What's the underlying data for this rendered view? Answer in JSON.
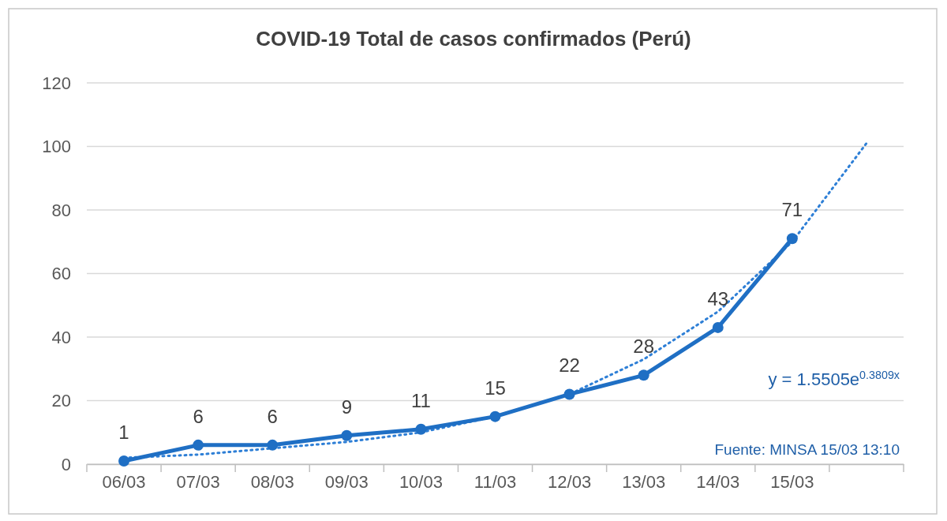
{
  "chart_data": {
    "type": "line",
    "title": "COVID-19  Total de casos confirmados (Perú)",
    "categories": [
      "06/03",
      "07/03",
      "08/03",
      "09/03",
      "10/03",
      "11/03",
      "12/03",
      "13/03",
      "14/03",
      "15/03",
      null
    ],
    "series": [
      {
        "color": "#1f6fc4",
        "values": [
          1,
          6,
          6,
          9,
          11,
          15,
          22,
          28,
          43,
          71,
          null
        ],
        "marker": "circle",
        "line_style": "solid",
        "data_labels": true
      },
      {
        "color": "#2e7fd6",
        "values": [
          2,
          3,
          5,
          7,
          10,
          15,
          22,
          33,
          48,
          70,
          101
        ],
        "marker": "none",
        "line_style": "dotted"
      }
    ],
    "ylim": [
      0,
      120
    ],
    "yticks": [
      0,
      20,
      40,
      60,
      80,
      100,
      120
    ],
    "grid": "y",
    "annotations": [
      "y = 1.5505e$^{0.3809x}$",
      "Fuente: MINSA  15/03 13:10"
    ]
  }
}
